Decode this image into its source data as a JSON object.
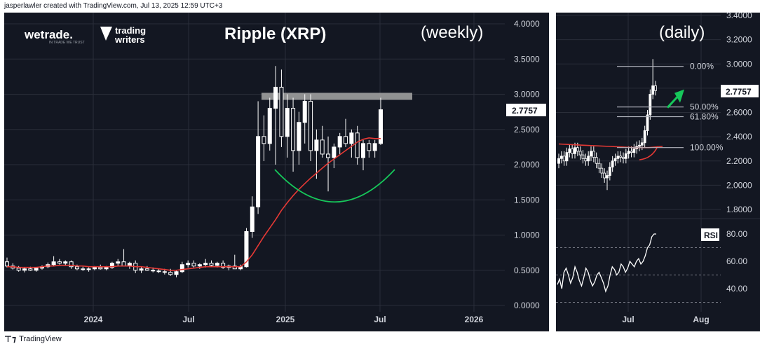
{
  "credit": "jasperlawler created with TradingView.com, Jul 13, 2025 12:59 UTC+3",
  "footer": "TradingView",
  "brands": {
    "wetrade": "wetrade.",
    "wetrade_tag": "IN TRADE WE TRUST",
    "tw_top": "trading",
    "tw_bottom": "writers"
  },
  "chart_data": [
    {
      "type": "candlestick",
      "title": "Ripple (XRP)",
      "subtitle": "(weekly)",
      "last_price_label": "2.7757",
      "y_ticks": [
        "4.0000",
        "3.5000",
        "3.0000",
        "2.5000",
        "2.0000",
        "1.5000",
        "1.0000",
        "0.5000",
        "0.0000"
      ],
      "ylim": [
        0,
        4.0
      ],
      "x_ticks": [
        "2024",
        "Jul",
        "2025",
        "Jul",
        "2026"
      ],
      "series": [
        {
          "name": "",
          "note": "weekly candles",
          "ohlc": [
            [
              0.62,
              0.68,
              0.54,
              0.56
            ],
            [
              0.56,
              0.6,
              0.51,
              0.53
            ],
            [
              0.53,
              0.56,
              0.48,
              0.5
            ],
            [
              0.5,
              0.54,
              0.47,
              0.52
            ],
            [
              0.52,
              0.55,
              0.49,
              0.5
            ],
            [
              0.5,
              0.54,
              0.48,
              0.53
            ],
            [
              0.53,
              0.57,
              0.51,
              0.55
            ],
            [
              0.55,
              0.61,
              0.53,
              0.58
            ],
            [
              0.58,
              0.7,
              0.56,
              0.62
            ],
            [
              0.62,
              0.66,
              0.58,
              0.6
            ],
            [
              0.6,
              0.64,
              0.56,
              0.62
            ],
            [
              0.62,
              0.64,
              0.52,
              0.55
            ],
            [
              0.55,
              0.58,
              0.5,
              0.52
            ],
            [
              0.52,
              0.55,
              0.49,
              0.51
            ],
            [
              0.51,
              0.54,
              0.48,
              0.52
            ],
            [
              0.52,
              0.56,
              0.5,
              0.54
            ],
            [
              0.54,
              0.58,
              0.51,
              0.52
            ],
            [
              0.52,
              0.56,
              0.5,
              0.54
            ],
            [
              0.54,
              0.62,
              0.52,
              0.6
            ],
            [
              0.6,
              0.66,
              0.56,
              0.62
            ],
            [
              0.62,
              0.8,
              0.58,
              0.56
            ],
            [
              0.56,
              0.62,
              0.52,
              0.6
            ],
            [
              0.6,
              0.64,
              0.46,
              0.5
            ],
            [
              0.5,
              0.55,
              0.46,
              0.52
            ],
            [
              0.52,
              0.56,
              0.49,
              0.5
            ],
            [
              0.5,
              0.54,
              0.47,
              0.49
            ],
            [
              0.49,
              0.52,
              0.46,
              0.48
            ],
            [
              0.48,
              0.52,
              0.44,
              0.47
            ],
            [
              0.47,
              0.52,
              0.42,
              0.44
            ],
            [
              0.44,
              0.5,
              0.4,
              0.48
            ],
            [
              0.48,
              0.62,
              0.46,
              0.58
            ],
            [
              0.58,
              0.64,
              0.54,
              0.6
            ],
            [
              0.6,
              0.64,
              0.54,
              0.56
            ],
            [
              0.56,
              0.6,
              0.52,
              0.58
            ],
            [
              0.58,
              0.66,
              0.54,
              0.6
            ],
            [
              0.6,
              0.64,
              0.55,
              0.57
            ],
            [
              0.57,
              0.62,
              0.54,
              0.6
            ],
            [
              0.6,
              0.64,
              0.52,
              0.54
            ],
            [
              0.54,
              0.58,
              0.5,
              0.56
            ],
            [
              0.56,
              0.72,
              0.54,
              0.52
            ],
            [
              0.52,
              0.58,
              0.5,
              0.55
            ],
            [
              0.55,
              1.1,
              0.54,
              1.05
            ],
            [
              1.05,
              1.55,
              0.96,
              1.4
            ],
            [
              1.4,
              2.9,
              1.3,
              2.4
            ],
            [
              2.4,
              2.7,
              2.05,
              2.3
            ],
            [
              2.3,
              2.95,
              2.2,
              2.8
            ],
            [
              2.8,
              3.4,
              2.0,
              3.1
            ],
            [
              3.1,
              3.35,
              2.25,
              2.4
            ],
            [
              2.4,
              3.0,
              2.1,
              2.8
            ],
            [
              2.8,
              2.95,
              1.9,
              2.2
            ],
            [
              2.2,
              2.75,
              2.0,
              2.6
            ],
            [
              2.6,
              3.0,
              2.3,
              2.9
            ],
            [
              2.9,
              3.0,
              2.05,
              2.2
            ],
            [
              2.2,
              2.5,
              1.8,
              2.35
            ],
            [
              2.35,
              2.55,
              2.1,
              2.15
            ],
            [
              2.15,
              2.4,
              1.62,
              2.1
            ],
            [
              2.1,
              2.3,
              1.95,
              2.25
            ],
            [
              2.25,
              2.45,
              2.15,
              2.4
            ],
            [
              2.4,
              2.65,
              2.25,
              2.3
            ],
            [
              2.3,
              2.5,
              2.1,
              2.45
            ],
            [
              2.45,
              2.55,
              2.0,
              2.1
            ],
            [
              2.1,
              2.35,
              1.92,
              2.3
            ],
            [
              2.3,
              2.35,
              2.1,
              2.2
            ],
            [
              2.2,
              2.35,
              2.1,
              2.3
            ],
            [
              2.3,
              2.95,
              2.28,
              2.78
            ]
          ]
        },
        {
          "name": "",
          "note": "moving average (red)",
          "values": [
            0.55,
            0.55,
            0.54,
            0.54,
            0.54,
            0.54,
            0.55,
            0.56,
            0.56,
            0.57,
            0.57,
            0.57,
            0.56,
            0.56,
            0.55,
            0.55,
            0.55,
            0.55,
            0.55,
            0.56,
            0.56,
            0.56,
            0.55,
            0.55,
            0.54,
            0.53,
            0.52,
            0.51,
            0.5,
            0.5,
            0.51,
            0.52,
            0.53,
            0.54,
            0.55,
            0.55,
            0.55,
            0.55,
            0.55,
            0.55,
            0.55,
            0.62,
            0.72,
            0.85,
            0.98,
            1.1,
            1.22,
            1.35,
            1.46,
            1.56,
            1.65,
            1.73,
            1.81,
            1.88,
            1.95,
            2.02,
            2.08,
            2.14,
            2.2,
            2.26,
            2.32,
            2.36,
            2.38,
            2.37,
            2.37
          ]
        },
        {
          "name": "",
          "note": "rounded base (green)",
          "values": [
            [
              0,
              1.93
            ],
            [
              0.5,
              1.47
            ],
            [
              1,
              1.93
            ]
          ]
        }
      ],
      "resistance_zone": [
        2.92,
        3.02
      ],
      "colors": {
        "bg": "#131722",
        "up": "#ffffff",
        "down": "#ffffff",
        "ma": "#e53935",
        "base": "#16c75a",
        "zone": "#9e9e9e"
      }
    },
    {
      "type": "candlestick",
      "subtitle": "(daily)",
      "last_price_label": "2.7757",
      "y_ticks": [
        "3.4000",
        "3.2000",
        "3.0000",
        "2.8000",
        "2.6000",
        "2.4000",
        "2.2000",
        "2.0000",
        "1.8000"
      ],
      "ylim": [
        1.8,
        3.4
      ],
      "x_ticks": [
        "Jul",
        "Aug"
      ],
      "fib_levels": [
        {
          "label": "0.00%",
          "value": 2.98
        },
        {
          "label": "50.00%",
          "value": 2.645
        },
        {
          "label": "61.80%",
          "value": 2.565
        },
        {
          "label": "100.00%",
          "value": 2.31
        }
      ],
      "rsi": {
        "label": "RSI",
        "ticks": [
          "80.00",
          "60.00",
          "40.00"
        ],
        "values": [
          43,
          47,
          40,
          52,
          55,
          50,
          44,
          48,
          56,
          52,
          46,
          42,
          48,
          55,
          52,
          46,
          42,
          45,
          50,
          52,
          48,
          44,
          38,
          42,
          50,
          56,
          54,
          50,
          52,
          58,
          56,
          52,
          55,
          60,
          58,
          56,
          60,
          62,
          58,
          60,
          64,
          70,
          72,
          78,
          80,
          80
        ]
      },
      "colors": {
        "ma": "#e53935",
        "arrow": "#16c75a",
        "rsi": "#ffffff"
      }
    }
  ]
}
